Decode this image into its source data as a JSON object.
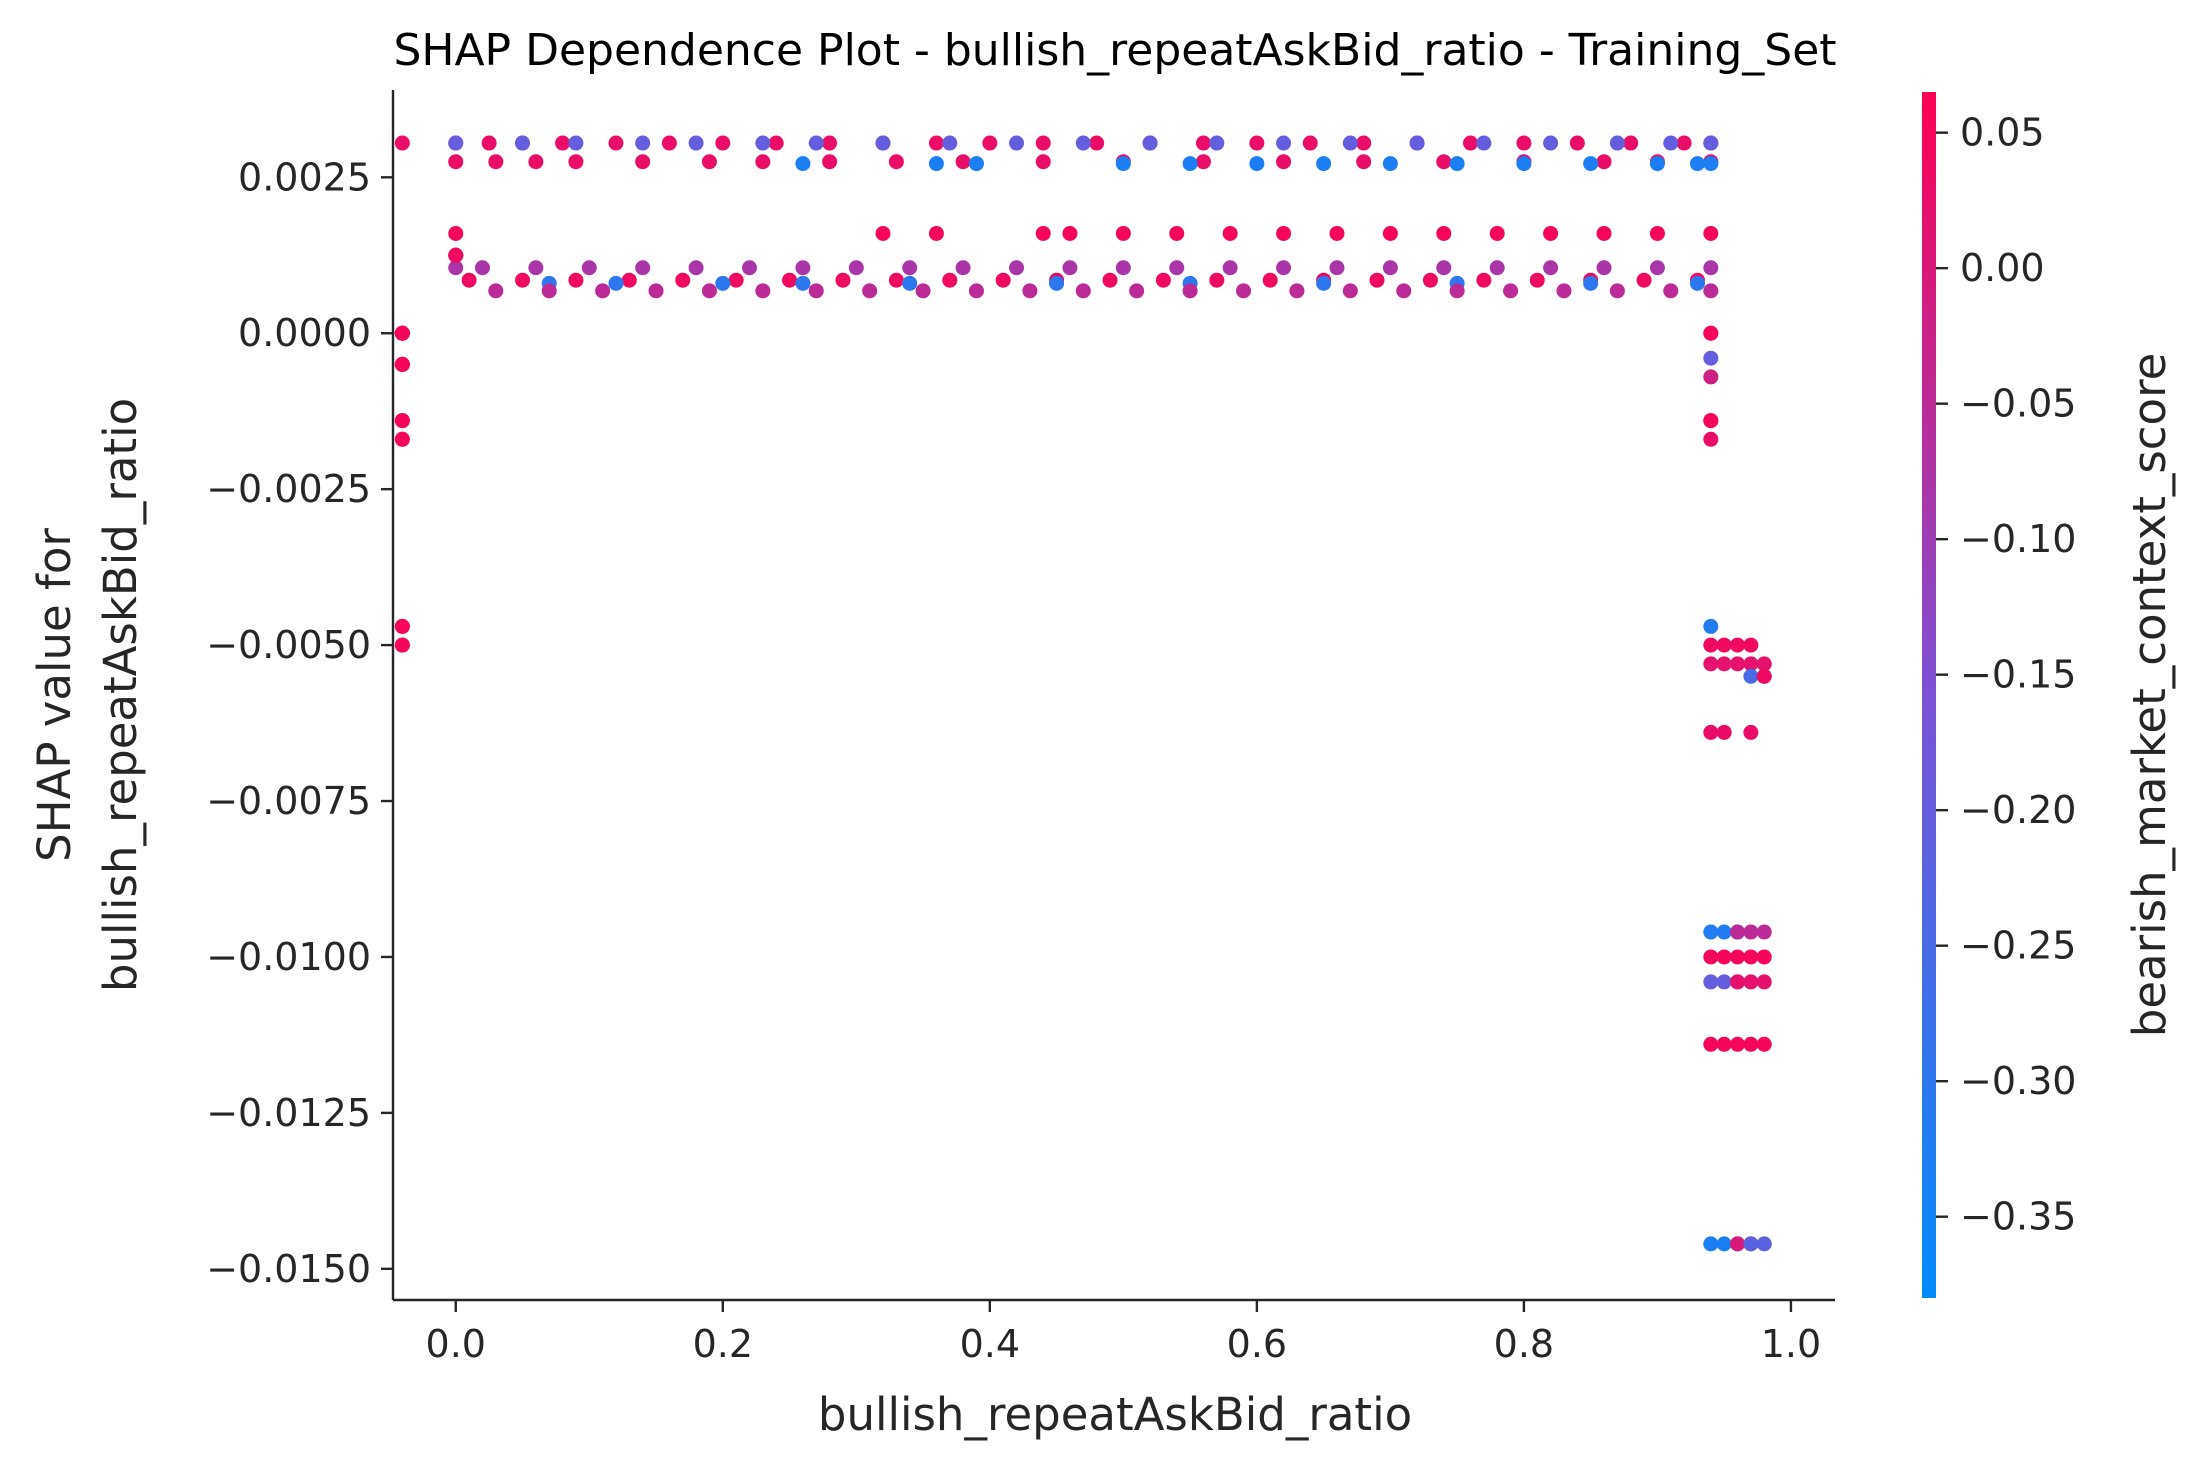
{
  "chart_data": {
    "type": "scatter",
    "title": "SHAP Dependence Plot - bullish_repeatAskBid_ratio - Training_Set",
    "xlabel": "bullish_repeatAskBid_ratio",
    "ylabel_lines": [
      "SHAP value for",
      "bullish_repeatAskBid_ratio"
    ],
    "xlim": [
      -0.047,
      1.033
    ],
    "ylim": [
      -0.0155,
      0.0039
    ],
    "x_ticks": [
      0.0,
      0.2,
      0.4,
      0.6,
      0.8,
      1.0
    ],
    "x_tick_labels": [
      "0.0",
      "0.2",
      "0.4",
      "0.6",
      "0.8",
      "1.0"
    ],
    "y_ticks": [
      0.0025,
      0.0,
      -0.0025,
      -0.005,
      -0.0075,
      -0.01,
      -0.0125,
      -0.015
    ],
    "y_tick_labels": [
      "0.0025",
      "0.0000",
      "−0.0025",
      "−0.0050",
      "−0.0075",
      "−0.0100",
      "−0.0125",
      "−0.0150"
    ],
    "grid": false,
    "colorbar": {
      "label": "bearish_market_context_score",
      "range": [
        -0.38,
        0.065
      ],
      "ticks": [
        0.05,
        0.0,
        -0.05,
        -0.1,
        -0.15,
        -0.2,
        -0.25,
        -0.3,
        -0.35
      ],
      "tick_labels": [
        "0.05",
        "0.00",
        "−0.05",
        "−0.10",
        "−0.15",
        "−0.20",
        "−0.25",
        "−0.30",
        "−0.35"
      ],
      "color_low": "#008bfb",
      "color_mid": "#7c52d6",
      "color_high": "#ff0052"
    },
    "point_groups": [
      {
        "x": [
          -0.04,
          0.0,
          0.025,
          0.05,
          0.08,
          0.12,
          0.16,
          0.2,
          0.24,
          0.28,
          0.32,
          0.36,
          0.4,
          0.44,
          0.48,
          0.52,
          0.56,
          0.6,
          0.64,
          0.68,
          0.72,
          0.76,
          0.8,
          0.84,
          0.88,
          0.92,
          0.94
        ],
        "y": 0.00305,
        "c": 0.03
      },
      {
        "x": [
          0.0,
          0.05,
          0.09,
          0.14,
          0.18,
          0.23,
          0.27,
          0.32,
          0.37,
          0.42,
          0.47,
          0.52,
          0.57,
          0.62,
          0.67,
          0.72,
          0.77,
          0.82,
          0.87,
          0.91,
          0.94
        ],
        "y": 0.00305,
        "c": -0.2
      },
      {
        "x": [
          0.0,
          0.03,
          0.06,
          0.09,
          0.14,
          0.19,
          0.23,
          0.28,
          0.33,
          0.38,
          0.44,
          0.5,
          0.56,
          0.62,
          0.68,
          0.74,
          0.8,
          0.86,
          0.9,
          0.94
        ],
        "y": 0.00275,
        "c": 0.03
      },
      {
        "x": [
          0.26,
          0.36,
          0.39,
          0.5,
          0.55,
          0.6,
          0.65,
          0.7,
          0.75,
          0.8,
          0.85,
          0.9,
          0.93,
          0.94
        ],
        "y": 0.00272,
        "c": -0.33
      },
      {
        "x": [
          0.0,
          0.32,
          0.36,
          0.44,
          0.46,
          0.5,
          0.54,
          0.58,
          0.62,
          0.66,
          0.7,
          0.74,
          0.78,
          0.82,
          0.86,
          0.9,
          0.94
        ],
        "y": 0.0016,
        "c": 0.05
      },
      {
        "x": [
          0.0,
          0.02,
          0.06,
          0.1,
          0.14,
          0.18,
          0.22,
          0.26,
          0.3,
          0.34,
          0.38,
          0.42,
          0.46,
          0.5,
          0.54,
          0.58,
          0.62,
          0.66,
          0.7,
          0.74,
          0.78,
          0.82,
          0.86,
          0.9,
          0.94
        ],
        "y": 0.00105,
        "c": -0.08
      },
      {
        "x": [
          0.01,
          0.05,
          0.09,
          0.13,
          0.17,
          0.21,
          0.25,
          0.29,
          0.33,
          0.37,
          0.41,
          0.45,
          0.49,
          0.53,
          0.57,
          0.61,
          0.65,
          0.69,
          0.73,
          0.77,
          0.81,
          0.85,
          0.89,
          0.93
        ],
        "y": 0.00085,
        "c": 0.04
      },
      {
        "x": [
          0.07,
          0.12,
          0.2,
          0.26,
          0.34,
          0.45,
          0.55,
          0.65,
          0.75,
          0.85,
          0.93
        ],
        "y": 0.0008,
        "c": -0.3
      },
      {
        "x": [
          0.03,
          0.07,
          0.11,
          0.15,
          0.19,
          0.23,
          0.27,
          0.31,
          0.35,
          0.39,
          0.43,
          0.47,
          0.51,
          0.55,
          0.59,
          0.63,
          0.67,
          0.71,
          0.75,
          0.79,
          0.83,
          0.87,
          0.91,
          0.94
        ],
        "y": 0.00068,
        "c": -0.05
      },
      {
        "x": [
          0.0,
          0.0,
          0.0,
          0.0
        ],
        "y": 0.00125,
        "c": 0.04
      },
      {
        "x": [
          -0.04,
          -0.04,
          -0.04,
          -0.04,
          -0.04,
          -0.04,
          -0.04
        ],
        "y": 0.0,
        "c": 0.05
      },
      {
        "x": [
          -0.04,
          -0.04,
          -0.04,
          -0.04
        ],
        "y": -0.0005,
        "c": 0.05
      },
      {
        "x": [
          -0.04,
          -0.04,
          -0.04
        ],
        "y": -0.0014,
        "c": 0.05
      },
      {
        "x": [
          -0.04,
          -0.04
        ],
        "y": -0.0017,
        "c": 0.05
      },
      {
        "x": [
          -0.04,
          -0.04
        ],
        "y": -0.0047,
        "c": 0.05
      },
      {
        "x": [
          -0.04,
          -0.04
        ],
        "y": -0.005,
        "c": 0.05
      },
      {
        "x": [
          0.94,
          0.94
        ],
        "y": 0.0,
        "c": 0.05
      },
      {
        "x": [
          0.94
        ],
        "y": -0.0004,
        "c": -0.2
      },
      {
        "x": [
          0.94
        ],
        "y": -0.0007,
        "c": -0.02
      },
      {
        "x": [
          0.94,
          0.94
        ],
        "y": -0.0014,
        "c": 0.05
      },
      {
        "x": [
          0.94
        ],
        "y": -0.0017,
        "c": 0.03
      },
      {
        "x": [
          0.94
        ],
        "y": -0.0047,
        "c": -0.32
      },
      {
        "x": [
          0.94,
          0.95,
          0.96,
          0.97
        ],
        "y": -0.005,
        "c": 0.04
      },
      {
        "x": [
          0.94,
          0.95,
          0.96,
          0.97,
          0.98
        ],
        "y": -0.0053,
        "c": 0.02
      },
      {
        "x": [
          0.97,
          0.98
        ],
        "y": -0.0055,
        "c": -0.25
      },
      {
        "x": [
          0.98
        ],
        "y": -0.0055,
        "c": 0.04
      },
      {
        "x": [
          0.94,
          0.95,
          0.97
        ],
        "y": -0.0064,
        "c": 0.03
      },
      {
        "x": [
          0.94,
          0.95,
          0.96
        ],
        "y": -0.0096,
        "c": -0.32
      },
      {
        "x": [
          0.96,
          0.97,
          0.98
        ],
        "y": -0.0096,
        "c": -0.05
      },
      {
        "x": [
          0.94,
          0.95,
          0.96,
          0.97,
          0.98
        ],
        "y": -0.01,
        "c": 0.05
      },
      {
        "x": [
          0.94,
          0.95,
          0.96
        ],
        "y": -0.0104,
        "c": -0.2
      },
      {
        "x": [
          0.96,
          0.97,
          0.98
        ],
        "y": -0.0104,
        "c": 0.02
      },
      {
        "x": [
          0.94,
          0.95,
          0.96,
          0.97,
          0.98
        ],
        "y": -0.0114,
        "c": 0.05
      },
      {
        "x": [
          0.94,
          0.95,
          0.96
        ],
        "y": -0.0146,
        "c": -0.33
      },
      {
        "x": [
          0.96,
          0.97
        ],
        "y": -0.0146,
        "c": 0.0
      },
      {
        "x": [
          0.97,
          0.98
        ],
        "y": -0.0146,
        "c": -0.22
      }
    ]
  }
}
